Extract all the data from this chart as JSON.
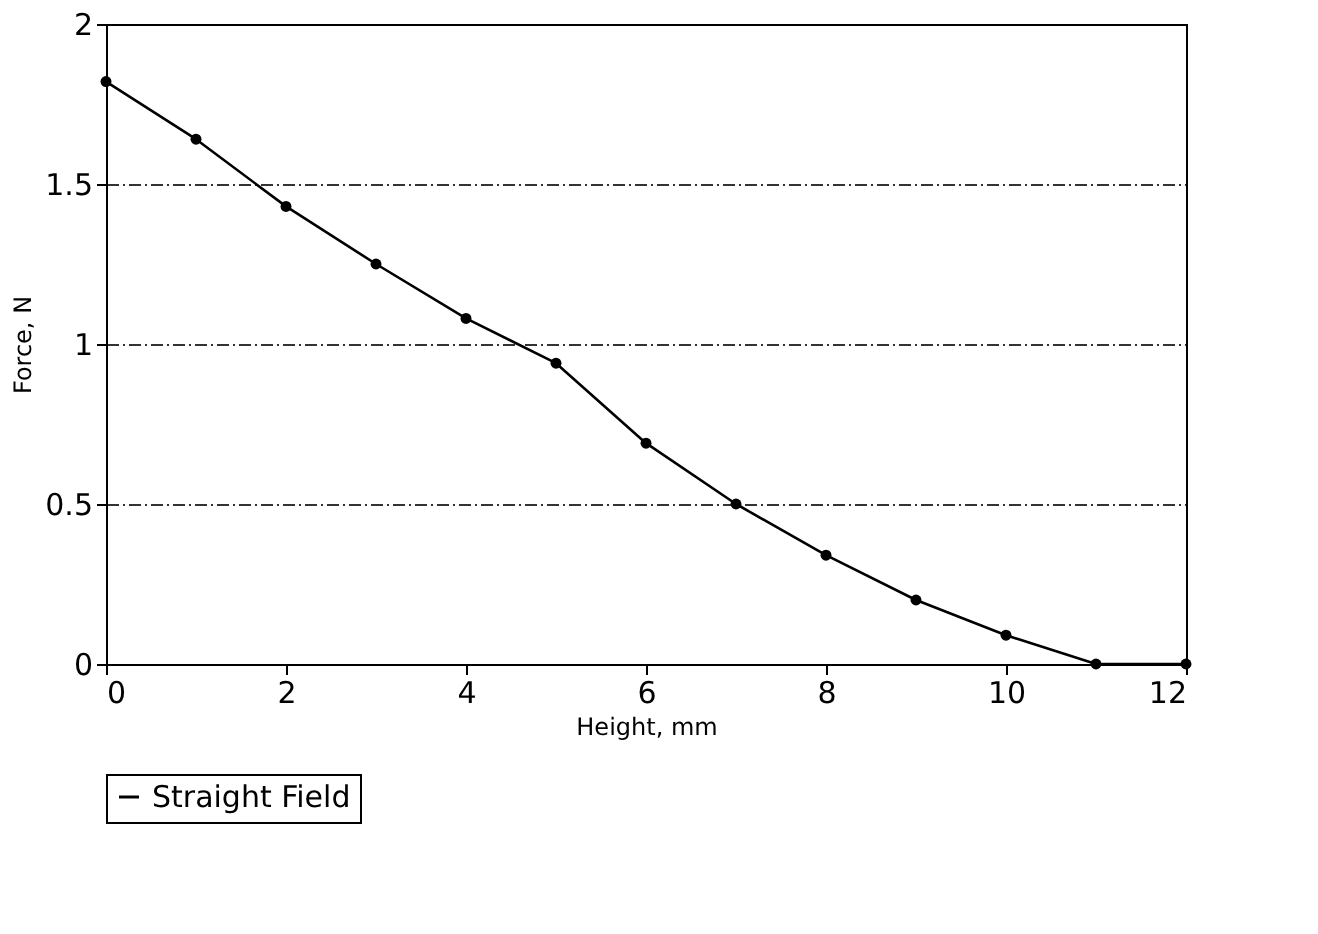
{
  "chart_data": {
    "type": "line",
    "xlabel": "Height, mm",
    "ylabel": "Force, N",
    "x": [
      0,
      1,
      2,
      3,
      4,
      5,
      6,
      7,
      8,
      9,
      10,
      11,
      12
    ],
    "series": [
      {
        "name": "Straight Field",
        "color": "#000000",
        "values": [
          1.82,
          1.64,
          1.43,
          1.25,
          1.08,
          0.94,
          0.69,
          0.5,
          0.34,
          0.2,
          0.09,
          0,
          0
        ]
      }
    ],
    "xlim": [
      0,
      12
    ],
    "xticks": [
      0,
      2,
      4,
      6,
      8,
      10,
      12
    ],
    "ylim": [
      0,
      2
    ],
    "yticks": [
      0,
      {
        "value": 0.5,
        "label": "0.5"
      },
      1,
      {
        "value": 1.5,
        "label": "1.5"
      },
      2
    ],
    "grid": "y",
    "legend": "bottom",
    "marker": "circle",
    "line_style": "solid"
  }
}
